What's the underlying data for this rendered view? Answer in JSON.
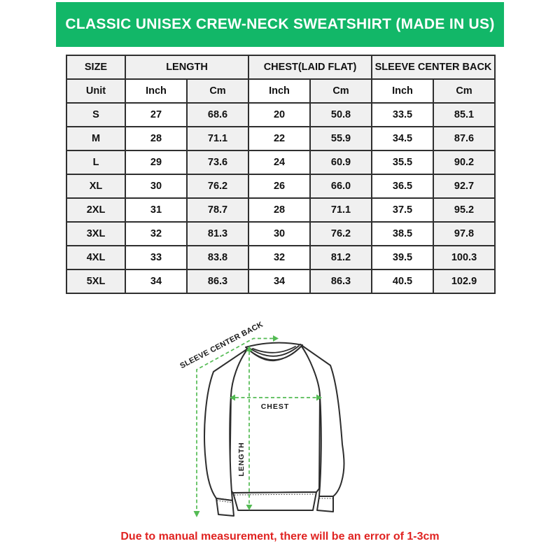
{
  "banner": {
    "title": "CLASSIC UNISEX CREW-NECK SWEATSHIRT (MADE IN US)",
    "bg_color": "#12b768",
    "text_color": "#ffffff"
  },
  "table": {
    "group_headers": [
      "SIZE",
      "LENGTH",
      "CHEST(LAID FLAT)",
      "SLEEVE CENTER BACK"
    ],
    "unit_headers": [
      "Unit",
      "Inch",
      "Cm",
      "Inch",
      "Cm",
      "Inch",
      "Cm"
    ],
    "rows": [
      {
        "size": "S",
        "values": [
          "27",
          "68.6",
          "20",
          "50.8",
          "33.5",
          "85.1"
        ]
      },
      {
        "size": "M",
        "values": [
          "28",
          "71.1",
          "22",
          "55.9",
          "34.5",
          "87.6"
        ]
      },
      {
        "size": "L",
        "values": [
          "29",
          "73.6",
          "24",
          "60.9",
          "35.5",
          "90.2"
        ]
      },
      {
        "size": "XL",
        "values": [
          "30",
          "76.2",
          "26",
          "66.0",
          "36.5",
          "92.7"
        ]
      },
      {
        "size": "2XL",
        "values": [
          "31",
          "78.7",
          "28",
          "71.1",
          "37.5",
          "95.2"
        ]
      },
      {
        "size": "3XL",
        "values": [
          "32",
          "81.3",
          "30",
          "76.2",
          "38.5",
          "97.8"
        ]
      },
      {
        "size": "4XL",
        "values": [
          "33",
          "83.8",
          "32",
          "81.2",
          "39.5",
          "100.3"
        ]
      },
      {
        "size": "5XL",
        "values": [
          "34",
          "86.3",
          "34",
          "86.3",
          "40.5",
          "102.9"
        ]
      }
    ]
  },
  "diagram": {
    "labels": {
      "sleeve_center_back": "SLEEVE CENTER BACK",
      "chest": "CHEST",
      "length": "LENGTH"
    },
    "measure_color": "#54bb54",
    "outline_color": "#2d2d2d"
  },
  "footnote": {
    "text": "Due to manual measurement, there will be an error of 1-3cm",
    "color": "#e02321"
  }
}
